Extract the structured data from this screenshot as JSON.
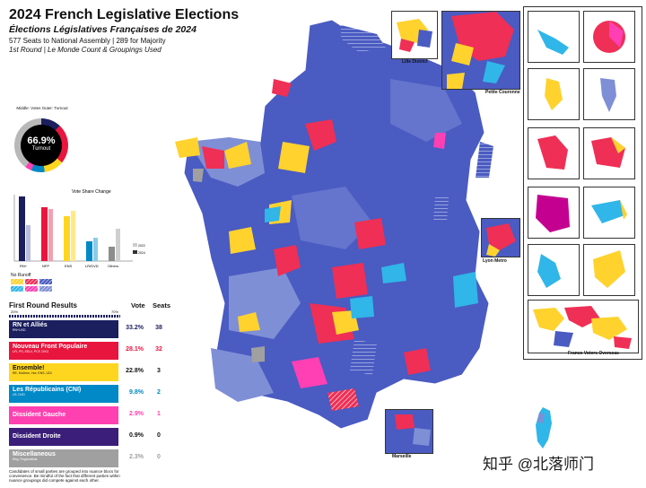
{
  "header": {
    "title": "2024 French Legislative Elections",
    "subtitle": "Élections Législatives Françaises de 2024",
    "line1": "577 Seats to National Assembly | 289 for Majority",
    "line2": "1st Round | Le Monde Count & Groupings Used"
  },
  "turnout": {
    "value": "66.9%",
    "label": "Turnout",
    "top_text": "Middle: Votes\nOuter: Turnout"
  },
  "vote_chart": {
    "title": "Vote Share Change",
    "categories": [
      "RN+",
      "NFP",
      "ENS",
      "LR/DVD",
      "Others"
    ],
    "legend": [
      "2022",
      "2024"
    ],
    "runoff_label": "No Runoff"
  },
  "results": {
    "heading": "First Round Results",
    "scale_left": "20%",
    "scale_right": "70%",
    "col_vote": "Vote",
    "col_seats": "Seats",
    "rows": [
      {
        "name": "RN et Alliés",
        "sub": "RN+UXD",
        "vote": "33.2%",
        "seats": "38",
        "color": "#1b1f5e",
        "vcolor": "#1b1f5e"
      },
      {
        "name": "Nouveau Front Populaire",
        "sub": "LFI, PS, EELV, PCF, DVG",
        "vote": "28.1%",
        "seats": "32",
        "color": "#e8163e",
        "vcolor": "#e8163e"
      },
      {
        "name": "Ensemble!",
        "sub": "RE, MoDem, Hor, ENS, UDI",
        "vote": "22.8%",
        "seats": "3",
        "color": "#ffd61f",
        "vcolor": "#111111"
      },
      {
        "name": "Les Républicains (CNI)",
        "sub": "LR, DVD",
        "vote": "9.8%",
        "seats": "2",
        "color": "#0088c7",
        "vcolor": "#0088c7"
      },
      {
        "name": "Dissident Gauche",
        "sub": "",
        "vote": "2.9%",
        "seats": "1",
        "color": "#ff40b0",
        "vcolor": "#ff40b0"
      },
      {
        "name": "Dissident Droite",
        "sub": "",
        "vote": "0.9%",
        "seats": "0",
        "color": "#3a1e7a",
        "vcolor": "#111111"
      },
      {
        "name": "Miscellaneous",
        "sub": "Reg, Regionalists",
        "vote": "2.3%",
        "seats": "0",
        "color": "#a0a0a0",
        "vcolor": "#a0a0a0"
      }
    ],
    "footnote": "Candidates of small parties are grouped into nuance blocs for convenience. Be mindful of the fact that different parties within nuance groupings did compete against each other."
  },
  "insets": {
    "lille": "Lille District",
    "paris": "Petite Couronne",
    "lyon": "Lyon Metro",
    "marseille": "Marseille",
    "overseas": "France Voters Overseas"
  },
  "watermark": "知乎 @北落师门",
  "colors": {
    "rn": "#4a5bc2",
    "rn_light": "#7f8fd6",
    "nfp": "#ef2f55",
    "ens": "#ffd22e",
    "lr": "#30b6e8",
    "dvg": "#ff3fb3"
  }
}
